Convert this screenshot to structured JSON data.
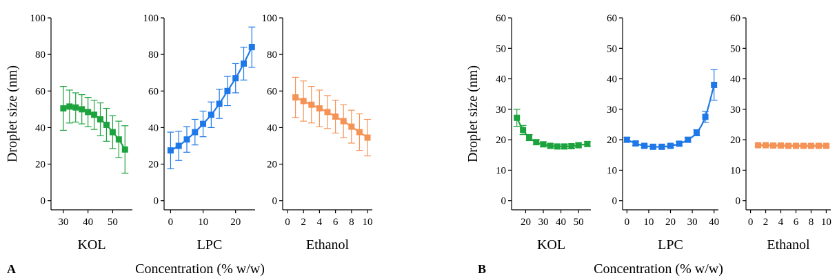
{
  "figure": {
    "panel_labels": [
      "A",
      "B"
    ],
    "xlabel": "Concentration (% w/w)",
    "ylabel": "Droplet size (nm)",
    "colors": {
      "KOL": "#1da33d",
      "LPC": "#1f78e8",
      "Ethanol": "#f59356"
    }
  },
  "chart_data": [
    {
      "type": "line",
      "panel": "A",
      "subtitle": "KOL",
      "ylabel": "Droplet size (nm)",
      "xlim": [
        25,
        58
      ],
      "ylim": [
        -5,
        100
      ],
      "xticks": [
        30,
        40,
        50
      ],
      "yticks": [
        0,
        20,
        40,
        60,
        80,
        100
      ],
      "color": "#1da33d",
      "x": [
        30,
        32.5,
        35,
        37.5,
        40,
        42.5,
        45,
        47.5,
        50,
        52.5,
        55
      ],
      "y": [
        50.5,
        51.5,
        51,
        50,
        48.5,
        47,
        44.5,
        41.5,
        37.5,
        33.5,
        28
      ],
      "err": [
        12,
        9,
        8,
        8,
        8,
        8,
        9,
        9,
        9,
        10,
        13
      ]
    },
    {
      "type": "line",
      "panel": "A",
      "subtitle": "LPC",
      "xlim": [
        -2,
        26
      ],
      "ylim": [
        -5,
        100
      ],
      "xticks": [
        0,
        10,
        20
      ],
      "yticks": [
        0,
        20,
        40,
        60,
        80,
        100
      ],
      "color": "#1f78e8",
      "x": [
        0,
        2.5,
        5,
        7.5,
        10,
        12.5,
        15,
        17.5,
        20,
        22.5,
        25
      ],
      "y": [
        27.5,
        30,
        33.5,
        37.5,
        42,
        47,
        53,
        60,
        67,
        75,
        84
      ],
      "err": [
        10,
        8,
        7,
        7,
        7,
        7,
        8,
        8,
        8,
        9,
        11
      ]
    },
    {
      "type": "line",
      "panel": "A",
      "subtitle": "Ethanol",
      "xlim": [
        -0.6,
        10.6
      ],
      "ylim": [
        -5,
        100
      ],
      "xticks": [
        0,
        2,
        4,
        6,
        8,
        10
      ],
      "yticks": [
        0,
        20,
        40,
        60,
        80,
        100
      ],
      "color": "#f59356",
      "x": [
        1,
        2,
        3,
        4,
        5,
        6,
        7,
        8,
        9,
        10
      ],
      "y": [
        56.5,
        54.5,
        52.5,
        50.5,
        48.5,
        46,
        43.5,
        40.5,
        37.5,
        34.5
      ],
      "err": [
        11,
        11,
        10,
        10,
        9,
        9,
        9,
        9,
        10,
        10
      ]
    },
    {
      "type": "line",
      "panel": "B",
      "subtitle": "KOL",
      "ylabel": "Droplet size (nm)",
      "xlim": [
        12,
        57
      ],
      "ylim": [
        -3,
        60
      ],
      "xticks": [
        20,
        30,
        40,
        50
      ],
      "yticks": [
        0,
        10,
        20,
        30,
        40,
        50,
        60
      ],
      "color": "#1da33d",
      "x": [
        15,
        18.5,
        22,
        26,
        30,
        34,
        38,
        42,
        46,
        50,
        55
      ],
      "y": [
        27.2,
        23.2,
        20.7,
        19.2,
        18.5,
        18,
        17.8,
        17.8,
        17.9,
        18.2,
        18.6
      ],
      "err": [
        2.8,
        1.5,
        1,
        0.8,
        0.8,
        0.7,
        0.7,
        0.7,
        0.7,
        0.7,
        0.8
      ]
    },
    {
      "type": "line",
      "panel": "B",
      "subtitle": "LPC",
      "xlim": [
        -2,
        42
      ],
      "ylim": [
        -3,
        60
      ],
      "xticks": [
        0,
        10,
        20,
        30,
        40
      ],
      "yticks": [
        0,
        10,
        20,
        30,
        40,
        50,
        60
      ],
      "color": "#1f78e8",
      "x": [
        0,
        4,
        8,
        12,
        16,
        20,
        24,
        28,
        32,
        36,
        40
      ],
      "y": [
        20,
        18.8,
        18,
        17.7,
        17.7,
        18,
        18.7,
        20,
        22.3,
        27.5,
        38
      ],
      "err": [
        0.8,
        0.7,
        0.6,
        0.6,
        0.6,
        0.6,
        0.7,
        0.8,
        1,
        1.8,
        5
      ]
    },
    {
      "type": "line",
      "panel": "B",
      "subtitle": "Ethanol",
      "xlim": [
        -0.6,
        10.6
      ],
      "ylim": [
        -3,
        60
      ],
      "xticks": [
        0,
        2,
        4,
        6,
        8,
        10
      ],
      "yticks": [
        0,
        10,
        20,
        30,
        40,
        50,
        60
      ],
      "color": "#f59356",
      "x": [
        1,
        2,
        3,
        4,
        5,
        6,
        7,
        8,
        9,
        10
      ],
      "y": [
        18.2,
        18.2,
        18.1,
        18.1,
        18,
        18,
        18,
        18,
        18,
        18
      ],
      "err": [
        0.4,
        0.4,
        0.4,
        0.4,
        0.4,
        0.4,
        0.4,
        0.4,
        0.4,
        0.4
      ]
    }
  ]
}
